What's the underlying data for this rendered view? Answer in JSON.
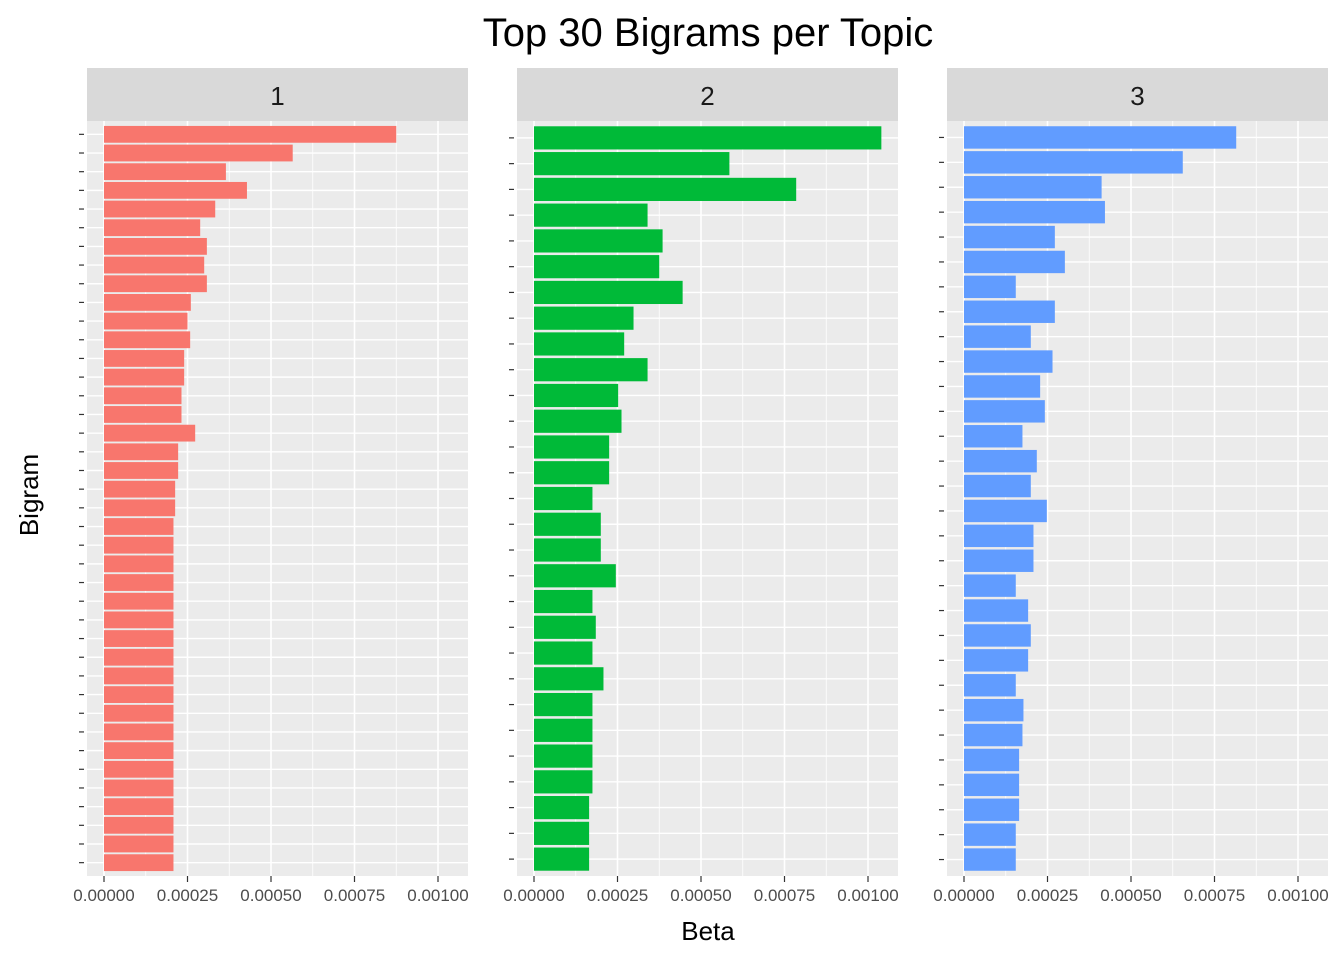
{
  "chart_data": {
    "type": "bar",
    "orientation": "horizontal",
    "title": "Top 30 Bigrams per Topic",
    "xlabel": "Beta",
    "ylabel": "Bigram",
    "xlim": [
      0,
      0.00105
    ],
    "x_ticks": [
      "0.00000",
      "0.00025",
      "0.00050",
      "0.00075",
      "0.00100"
    ],
    "x_tick_values": [
      0,
      0.00025,
      0.0005,
      0.00075,
      0.001
    ],
    "grid": true,
    "legend": "none",
    "facets": [
      {
        "name": "1",
        "color": "#F8766D",
        "values": [
          0.000875,
          0.000565,
          0.000365,
          0.000428,
          0.000333,
          0.000288,
          0.000308,
          0.0003,
          0.000308,
          0.00026,
          0.00025,
          0.000258,
          0.00024,
          0.00024,
          0.000232,
          0.000232,
          0.000273,
          0.000222,
          0.000222,
          0.000213,
          0.000213,
          0.000208,
          0.000208,
          0.000208,
          0.000208,
          0.000208,
          0.000208,
          0.000208,
          0.000208,
          0.000208,
          0.000208,
          0.000208,
          0.000208,
          0.000208,
          0.000208,
          0.000208,
          0.000208,
          0.000208,
          0.000208,
          0.000208
        ]
      },
      {
        "name": "2",
        "color": "#00BA38",
        "values": [
          0.00104,
          0.000585,
          0.000785,
          0.00034,
          0.000385,
          0.000375,
          0.000445,
          0.000298,
          0.00027,
          0.00034,
          0.000252,
          0.000262,
          0.000225,
          0.000225,
          0.000175,
          0.0002,
          0.0002,
          0.000245,
          0.000175,
          0.000185,
          0.000175,
          0.000208,
          0.000175,
          0.000175,
          0.000175,
          0.000175,
          0.000165,
          0.000165,
          0.000165
        ]
      },
      {
        "name": "3",
        "color": "#619CFF",
        "values": [
          0.000815,
          0.000655,
          0.000412,
          0.000422,
          0.000272,
          0.000302,
          0.000155,
          0.000272,
          0.0002,
          0.000265,
          0.000228,
          0.000242,
          0.000175,
          0.000218,
          0.0002,
          0.000248,
          0.000208,
          0.000208,
          0.000155,
          0.000192,
          0.0002,
          0.000192,
          0.000155,
          0.000178,
          0.000175,
          0.000165,
          0.000165,
          0.000165,
          0.000155,
          0.000155
        ]
      }
    ]
  }
}
